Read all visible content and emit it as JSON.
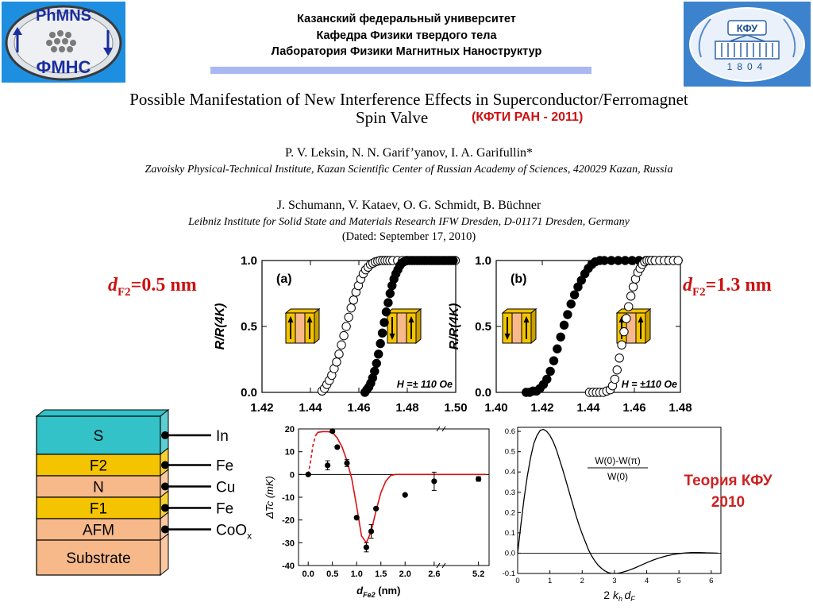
{
  "header": {
    "line1": "Казанский федеральный университет",
    "line2": "Кафедра Физики твердого тела",
    "line3": "Лаборатория Физики Магнитных Наноструктур"
  },
  "logo_left": {
    "top_text": "PhMNS",
    "bottom_text": "ФМНС",
    "bg_color": "#1e8fe0"
  },
  "logo_right": {
    "text": "КФУ",
    "year": "1804",
    "bg_color": "#3d82cc"
  },
  "paper": {
    "title_line1": "Possible Manifestation of New Interference Effects in Superconductor/Ferromagnet",
    "title_line2": "Spin Valve",
    "source_note": "(КФТИ РАН - 2011)",
    "authors1": "P. V. Leksin, N. N. Garif’yanov, I. A. Garifullin*",
    "affiliation1": "Zavoisky Physical-Technical Institute, Kazan Scientific Center of Russian Academy of Sciences, 420029 Kazan, Russia",
    "authors2": "J. Schumann, V. Kataev, O. G. Schmidt, B. Büchner",
    "affiliation2": "Leibniz Institute for Solid State and Materials Research IFW Dresden, D-01171 Dresden, Germany",
    "dated": "(Dated: September 17, 2010)"
  },
  "labels": {
    "d_left": {
      "d": "d",
      "sub": "F2",
      "value": "=0.5 nm"
    },
    "d_right": {
      "d": "d",
      "sub": "F2",
      "value": "=1.3 nm"
    },
    "theory": [
      "Теория КФУ",
      "2010"
    ]
  },
  "stack": {
    "layers": [
      {
        "name": "S",
        "color": "#33c2c8",
        "material": "In"
      },
      {
        "name": "F2",
        "color": "#f5c400",
        "material": "Fe"
      },
      {
        "name": "N",
        "color": "#f7b98a",
        "material": "Cu"
      },
      {
        "name": "F1",
        "color": "#f5c400",
        "material": "Fe"
      },
      {
        "name": "AFM",
        "color": "#f7b98a",
        "material": "CoO",
        "material_sub": "x"
      },
      {
        "name": "Substrate",
        "color": "#f7b98a",
        "material": ""
      }
    ]
  },
  "chart_data": [
    {
      "type": "scatter",
      "panel": "(a)",
      "xlim": [
        1.42,
        1.5
      ],
      "ylim": [
        0.0,
        1.0
      ],
      "xticks": [
        "1.42",
        "1.44",
        "1.46",
        "1.48",
        "1.50"
      ],
      "yticks": [
        "0.0",
        "0.5",
        "1.0"
      ],
      "ylabel": "R/R(4K)",
      "annotation": "H =± 110 Oe",
      "series": [
        {
          "marker": "open",
          "x": [
            1.4448,
            1.4458,
            1.4468,
            1.4478,
            1.4488,
            1.4498,
            1.4508,
            1.4518,
            1.4528,
            1.4538,
            1.4548,
            1.4558,
            1.4568,
            1.4578,
            1.4588,
            1.4598,
            1.4608,
            1.4618,
            1.4628,
            1.4638,
            1.4648,
            1.4658,
            1.4668,
            1.4678,
            1.4688,
            1.4698,
            1.4708,
            1.4718,
            1.4728,
            1.474,
            1.476,
            1.478,
            1.48,
            1.482,
            1.484,
            1.486,
            1.488,
            1.49,
            1.492,
            1.494,
            1.496,
            1.498,
            1.4998
          ],
          "y": [
            0.01,
            0.03,
            0.06,
            0.09,
            0.13,
            0.18,
            0.23,
            0.29,
            0.36,
            0.43,
            0.5,
            0.57,
            0.64,
            0.7,
            0.76,
            0.81,
            0.86,
            0.9,
            0.93,
            0.95,
            0.97,
            0.98,
            0.99,
            0.995,
            1.0,
            1.0,
            1.0,
            1.0,
            1.0,
            1.0,
            1.0,
            1.0,
            1.0,
            1.0,
            1.0,
            1.0,
            1.0,
            1.0,
            1.0,
            1.0,
            1.0,
            1.0,
            1.0
          ]
        },
        {
          "marker": "filled",
          "x": [
            1.4625,
            1.4633,
            1.4641,
            1.4649,
            1.4657,
            1.4665,
            1.4673,
            1.4681,
            1.4689,
            1.4697,
            1.4705,
            1.4713,
            1.4721,
            1.4729,
            1.4737,
            1.4745,
            1.4753,
            1.4761,
            1.4769,
            1.4777,
            1.4785,
            1.4795,
            1.481,
            1.483,
            1.485,
            1.487,
            1.489,
            1.491,
            1.493,
            1.495,
            1.497,
            1.499
          ],
          "y": [
            0.0,
            0.02,
            0.04,
            0.07,
            0.11,
            0.16,
            0.22,
            0.29,
            0.37,
            0.45,
            0.53,
            0.61,
            0.68,
            0.75,
            0.81,
            0.86,
            0.9,
            0.93,
            0.96,
            0.98,
            0.99,
            1.0,
            1.0,
            1.0,
            1.0,
            1.0,
            1.0,
            1.0,
            1.0,
            1.0,
            1.0,
            1.0
          ]
        }
      ]
    },
    {
      "type": "scatter",
      "panel": "(b)",
      "xlim": [
        1.4,
        1.48
      ],
      "ylim": [
        0.0,
        1.0
      ],
      "xticks": [
        "1.40",
        "1.42",
        "1.44",
        "1.46",
        "1.48"
      ],
      "yticks": [
        "0.0",
        "0.5",
        "1.0"
      ],
      "ylabel": "R/R(4K)",
      "annotation": "H = ±110 Oe",
      "series": [
        {
          "marker": "filled",
          "x": [
            1.413,
            1.4145,
            1.416,
            1.4175,
            1.419,
            1.4205,
            1.422,
            1.4235,
            1.425,
            1.4265,
            1.428,
            1.4295,
            1.431,
            1.4325,
            1.434,
            1.4355,
            1.437,
            1.4385,
            1.44,
            1.4415,
            1.443,
            1.445,
            1.447,
            1.45,
            1.453,
            1.456,
            1.459,
            1.462,
            1.465,
            1.468,
            1.471,
            1.474,
            1.477,
            1.479
          ],
          "y": [
            0.0,
            0.0,
            0.01,
            0.01,
            0.03,
            0.06,
            0.1,
            0.16,
            0.24,
            0.33,
            0.42,
            0.51,
            0.59,
            0.67,
            0.74,
            0.8,
            0.85,
            0.9,
            0.94,
            0.97,
            0.99,
            1.0,
            1.0,
            1.0,
            1.0,
            1.0,
            1.0,
            1.0,
            1.0,
            1.0,
            1.0,
            1.0,
            1.0,
            1.0
          ]
        },
        {
          "marker": "open",
          "x": [
            1.4405,
            1.442,
            1.4435,
            1.445,
            1.4465,
            1.448,
            1.4495,
            1.4505,
            1.4515,
            1.4525,
            1.4535,
            1.4545,
            1.4555,
            1.4565,
            1.4575,
            1.4585,
            1.4595,
            1.4605,
            1.4615,
            1.4625,
            1.4635,
            1.4645,
            1.4655,
            1.4665,
            1.4675,
            1.469,
            1.471,
            1.473,
            1.475,
            1.477,
            1.479
          ],
          "y": [
            0.0,
            0.0,
            0.0,
            0.0,
            0.0,
            0.01,
            0.02,
            0.05,
            0.1,
            0.17,
            0.26,
            0.36,
            0.46,
            0.56,
            0.65,
            0.73,
            0.8,
            0.86,
            0.91,
            0.94,
            0.97,
            0.99,
            1.0,
            1.0,
            1.0,
            1.0,
            1.0,
            1.0,
            1.0,
            1.0,
            1.0
          ]
        }
      ]
    },
    {
      "type": "scatter",
      "xlabel": "d",
      "xlabel_sub": "Fe2",
      "xlabel_unit": " (nm)",
      "ylabel": "ΔTc (mK)",
      "xlim": [
        -0.2,
        5.9
      ],
      "ylim": [
        -40,
        20
      ],
      "xticks": [
        "0.0",
        "0.5",
        "1.0",
        "1.5",
        "2.0",
        "2.6",
        "5.2"
      ],
      "yticks": [
        "20",
        "10",
        "0",
        "-10",
        "-20",
        "-30",
        "-40"
      ],
      "points": [
        {
          "x": 0.0,
          "y": 0,
          "err": 0
        },
        {
          "x": 0.4,
          "y": 4,
          "err": 2
        },
        {
          "x": 0.5,
          "y": 19,
          "err": 0
        },
        {
          "x": 0.6,
          "y": 12,
          "err": 0
        },
        {
          "x": 0.8,
          "y": 5,
          "err": 1.5
        },
        {
          "x": 1.0,
          "y": -19,
          "err": 0
        },
        {
          "x": 1.2,
          "y": -32,
          "err": 2
        },
        {
          "x": 1.3,
          "y": -25,
          "err": 3
        },
        {
          "x": 1.4,
          "y": -15,
          "err": 0
        },
        {
          "x": 2.0,
          "y": -9,
          "err": 0
        },
        {
          "x": 2.6,
          "y": -3,
          "err": 4
        },
        {
          "x": 5.2,
          "y": -2,
          "err": 1
        }
      ],
      "fit_curve": {
        "x": [
          0.0,
          0.05,
          0.1,
          0.15,
          0.2,
          0.3,
          0.4,
          0.5,
          0.6,
          0.7,
          0.8,
          0.9,
          1.0,
          1.1,
          1.2,
          1.3,
          1.4,
          1.5,
          1.6,
          1.7,
          1.8,
          2.0,
          2.2,
          2.4,
          2.6,
          3.0,
          3.5,
          4.0,
          5.2,
          5.7
        ],
        "y": [
          0,
          6,
          13,
          17,
          18.5,
          18.8,
          18.8,
          18.5,
          16,
          12,
          6,
          -2,
          -14,
          -27,
          -30,
          -25,
          -16,
          -8,
          -3,
          -0.5,
          0,
          0,
          0,
          0,
          0,
          0,
          0,
          0,
          0,
          0
        ]
      }
    },
    {
      "type": "line",
      "xlabel": "2 kh dF",
      "xlim": [
        0,
        6.3
      ],
      "ylim": [
        -0.1,
        0.62
      ],
      "xticks": [
        "0",
        "1",
        "2",
        "3",
        "4",
        "5",
        "6"
      ],
      "yticks": [
        "0.6",
        "0.5",
        "0.4",
        "0.3",
        "0.2",
        "0.1",
        "0.0",
        "-0.1"
      ],
      "legend_num": "W(0)-W(π)",
      "legend_den": "W(0)",
      "curve": {
        "x": [
          0,
          0.1,
          0.2,
          0.3,
          0.4,
          0.5,
          0.6,
          0.7,
          0.8,
          0.9,
          1.0,
          1.1,
          1.2,
          1.3,
          1.4,
          1.5,
          1.6,
          1.7,
          1.8,
          1.9,
          2.0,
          2.1,
          2.2,
          2.3,
          2.4,
          2.5,
          2.6,
          2.7,
          2.8,
          2.9,
          3.0,
          3.1,
          3.2,
          3.4,
          3.6,
          3.8,
          4.0,
          4.2,
          4.4,
          4.6,
          4.8,
          5.0,
          5.2,
          5.4,
          5.6,
          5.8,
          6.0,
          6.2
        ],
        "y": [
          0,
          0.14,
          0.27,
          0.38,
          0.47,
          0.54,
          0.58,
          0.605,
          0.61,
          0.6,
          0.58,
          0.55,
          0.51,
          0.46,
          0.41,
          0.355,
          0.3,
          0.245,
          0.19,
          0.14,
          0.095,
          0.055,
          0.015,
          -0.015,
          -0.04,
          -0.06,
          -0.075,
          -0.087,
          -0.095,
          -0.099,
          -0.1,
          -0.099,
          -0.096,
          -0.087,
          -0.075,
          -0.061,
          -0.047,
          -0.034,
          -0.023,
          -0.014,
          -0.007,
          -0.002,
          0.001,
          0.003,
          0.003,
          0.002,
          0.001,
          0.0
        ]
      }
    }
  ]
}
